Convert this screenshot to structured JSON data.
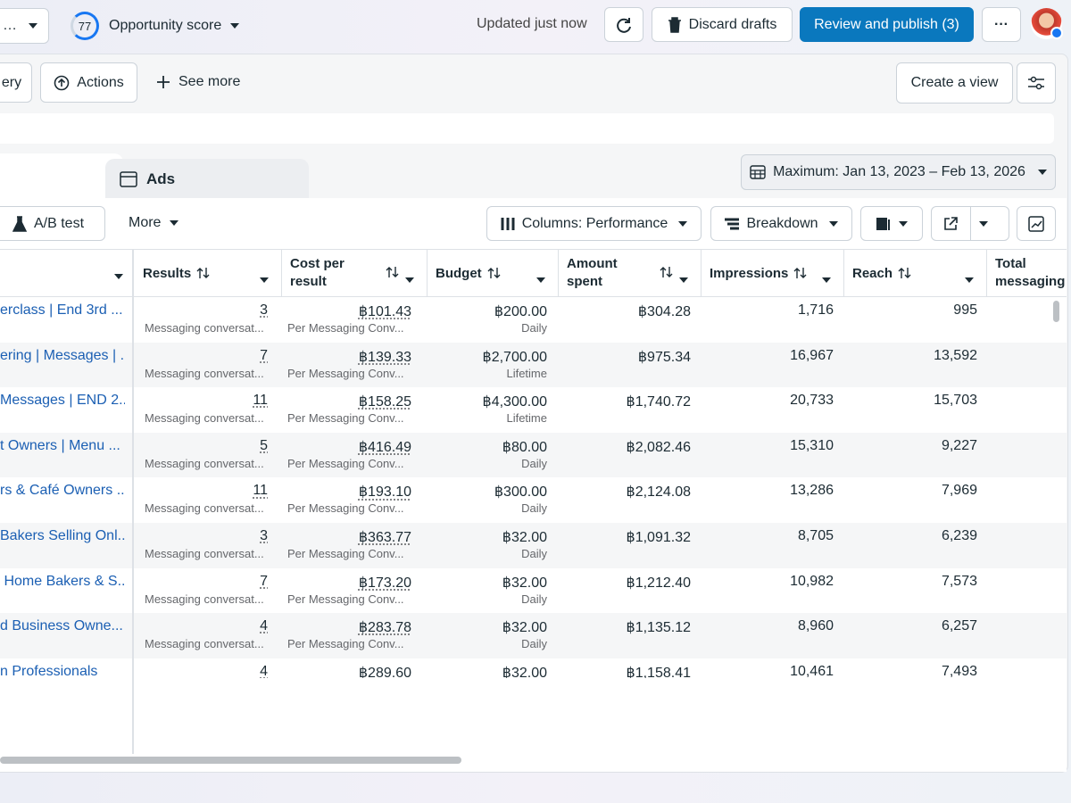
{
  "top_bar": {
    "account_menu": "…",
    "score": "77",
    "score_label": "Opportunity score",
    "status": "Updated just now",
    "discard": "Discard drafts",
    "publish": "Review and publish (3)",
    "more": "···"
  },
  "toolbar": {
    "gallery": "ery",
    "actions": "Actions",
    "see_more": "See more",
    "create_view": "Create a view"
  },
  "tabs": {
    "ads": "Ads",
    "date_range": "Maximum: Jan 13, 2023 – Feb 13, 2026"
  },
  "table_toolbar": {
    "ab_test": "A/B test",
    "more": "More",
    "columns": "Columns: Performance",
    "breakdown": "Breakdown"
  },
  "table": {
    "columns": [
      "Results",
      "Cost per result",
      "Budget",
      "Amount spent",
      "Impressions",
      "Reach",
      "Total messaging"
    ],
    "rows": [
      {
        "name": "erclass | End 3rd ...",
        "results": "3",
        "results_sub": "Messaging conversat...",
        "cost": "฿101.43",
        "cost_sub": "Per Messaging Conv...",
        "budget": "฿200.00",
        "budget_sub": "Daily",
        "amount": "฿304.28",
        "impressions": "1,716",
        "reach": "995"
      },
      {
        "name": "ering | Messages | ...",
        "results": "7",
        "results_sub": "Messaging conversat...",
        "cost": "฿139.33",
        "cost_sub": "Per Messaging Conv...",
        "budget": "฿2,700.00",
        "budget_sub": "Lifetime",
        "amount": "฿975.34",
        "impressions": "16,967",
        "reach": "13,592"
      },
      {
        "name": "Messages | END 2...",
        "results": "11",
        "results_sub": "Messaging conversat...",
        "cost": "฿158.25",
        "cost_sub": "Per Messaging Conv...",
        "budget": "฿4,300.00",
        "budget_sub": "Lifetime",
        "amount": "฿1,740.72",
        "impressions": "20,733",
        "reach": "15,703"
      },
      {
        "name": "t Owners | Menu ...",
        "results": "5",
        "results_sub": "Messaging conversat...",
        "cost": "฿416.49",
        "cost_sub": "Per Messaging Conv...",
        "budget": "฿80.00",
        "budget_sub": "Daily",
        "amount": "฿2,082.46",
        "impressions": "15,310",
        "reach": "9,227"
      },
      {
        "name": "rs & Café Owners ...",
        "results": "11",
        "results_sub": "Messaging conversat...",
        "cost": "฿193.10",
        "cost_sub": "Per Messaging Conv...",
        "budget": "฿300.00",
        "budget_sub": "Daily",
        "amount": "฿2,124.08",
        "impressions": "13,286",
        "reach": "7,969"
      },
      {
        "name": "Bakers Selling Onl...",
        "results": "3",
        "results_sub": "Messaging conversat...",
        "cost": "฿363.77",
        "cost_sub": "Per Messaging Conv...",
        "budget": "฿32.00",
        "budget_sub": "Daily",
        "amount": "฿1,091.32",
        "impressions": "8,705",
        "reach": "6,239"
      },
      {
        "name": " Home Bakers & S...",
        "results": "7",
        "results_sub": "Messaging conversat...",
        "cost": "฿173.20",
        "cost_sub": "Per Messaging Conv...",
        "budget": "฿32.00",
        "budget_sub": "Daily",
        "amount": "฿1,212.40",
        "impressions": "10,982",
        "reach": "7,573"
      },
      {
        "name": "d Business Owne...",
        "results": "4",
        "results_sub": "Messaging conversat...",
        "cost": "฿283.78",
        "cost_sub": "Per Messaging Conv...",
        "budget": "฿32.00",
        "budget_sub": "Daily",
        "amount": "฿1,135.12",
        "impressions": "8,960",
        "reach": "6,257"
      },
      {
        "name": "n Professionals",
        "results": "4",
        "cost": "฿289.60",
        "budget": "฿32.00",
        "amount": "฿1,158.41",
        "impressions": "10,461",
        "reach": "7,493"
      }
    ]
  }
}
